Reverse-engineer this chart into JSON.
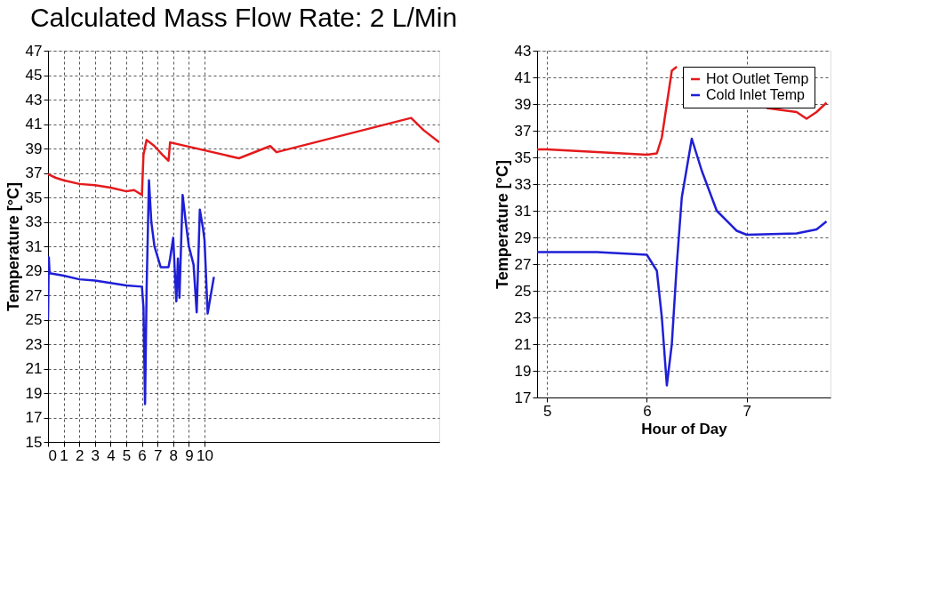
{
  "chart_data": [
    {
      "type": "line",
      "ylabel": "Temperature [°C]",
      "annotations": [
        "Calculated Mass Flow Rate: 2 L/Min"
      ],
      "xlim": [
        0,
        25
      ],
      "xticks": [
        0,
        1,
        2,
        3,
        4,
        5,
        6,
        7,
        8,
        9,
        10
      ],
      "ylim": [
        15,
        47
      ],
      "yticks": [
        15,
        17,
        19,
        21,
        23,
        25,
        27,
        29,
        31,
        33,
        35,
        37,
        39,
        41,
        43,
        45,
        47
      ],
      "grid": true,
      "line_style": "solid",
      "series": [
        {
          "color": "#e41a1c",
          "x": [
            0,
            0.5,
            1,
            2,
            3,
            4,
            5,
            5.5,
            6,
            6.1,
            6.3,
            6.8,
            7.3,
            7.7,
            7.8,
            12.2,
            14.2,
            14.6,
            23.2,
            24,
            25
          ],
          "values": [
            36.9,
            36.6,
            36.4,
            36.1,
            36.0,
            35.8,
            35.5,
            35.6,
            35.2,
            38.5,
            39.7,
            39.2,
            38.5,
            38.0,
            39.5,
            38.2,
            39.2,
            38.7,
            41.5,
            40.5,
            39.5
          ]
        },
        {
          "color": "#1f1fd6",
          "x": [
            0,
            0.05,
            0.1,
            1,
            2,
            3,
            4,
            5,
            6,
            6.1,
            6.2,
            6.3,
            6.45,
            6.6,
            6.8,
            7.2,
            7.7,
            7.8,
            8.0,
            8.1,
            8.2,
            8.3,
            8.4,
            8.6,
            8.8,
            9.0,
            9.3,
            9.5,
            9.7,
            9.9,
            10.0,
            10.2,
            10.4,
            10.6
          ],
          "values": [
            25.0,
            30.1,
            28.8,
            28.6,
            28.3,
            28.2,
            28.0,
            27.8,
            27.7,
            26.0,
            18.1,
            27.5,
            36.4,
            33.0,
            31.0,
            29.3,
            29.3,
            30.0,
            31.7,
            29.0,
            26.5,
            30.0,
            26.8,
            35.2,
            33.0,
            31.0,
            29.5,
            25.6,
            34.0,
            32.5,
            31.5,
            25.5,
            27.0,
            28.5
          ]
        }
      ]
    },
    {
      "type": "line",
      "xlabel": "Hour of Day",
      "ylabel": "Temperature [°C]",
      "xlim": [
        4.9,
        7.84
      ],
      "xticks": [
        5,
        6,
        7
      ],
      "ylim": [
        17,
        43
      ],
      "yticks": [
        17,
        19,
        21,
        23,
        25,
        27,
        29,
        31,
        33,
        35,
        37,
        39,
        41,
        43
      ],
      "grid": true,
      "legend": "top right",
      "line_style": "solid",
      "series": [
        {
          "name": "Hot Outlet Temp",
          "color": "#e41a1c",
          "x": [
            4.9,
            5,
            5.5,
            6,
            6.1,
            6.15,
            6.2,
            6.25,
            6.3,
            6.4,
            6.45,
            7.2,
            7.4,
            7.5,
            7.6,
            7.7,
            7.8
          ],
          "values": [
            35.6,
            35.6,
            35.4,
            35.2,
            35.3,
            36.5,
            39.0,
            41.5,
            41.8,
            null,
            null,
            38.7,
            38.5,
            38.4,
            37.9,
            38.4,
            39.1
          ]
        },
        {
          "name": "Cold Inlet Temp",
          "color": "#1f1fd6",
          "x": [
            4.9,
            5,
            5.5,
            6,
            6.1,
            6.15,
            6.2,
            6.25,
            6.3,
            6.35,
            6.45,
            6.55,
            6.7,
            6.9,
            7.0,
            7.5,
            7.7,
            7.8
          ],
          "values": [
            27.9,
            27.9,
            27.9,
            27.7,
            26.5,
            23.0,
            17.9,
            21.0,
            27.0,
            32.0,
            36.4,
            34.0,
            31.0,
            29.5,
            29.2,
            29.3,
            29.6,
            30.2
          ]
        }
      ]
    }
  ]
}
